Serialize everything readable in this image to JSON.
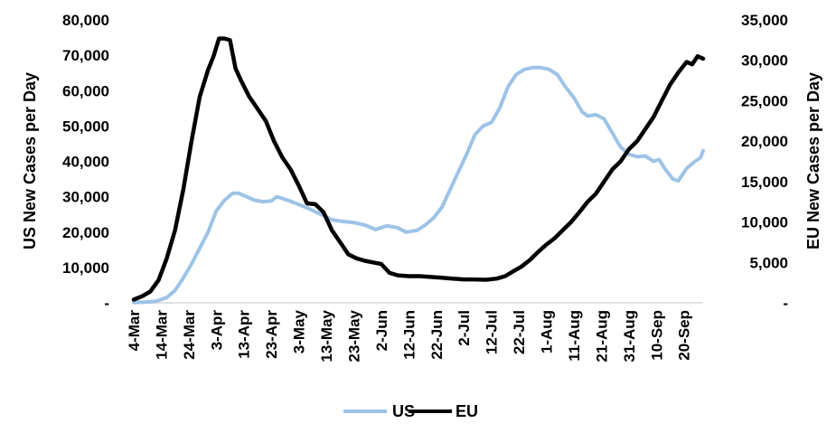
{
  "chart_data": {
    "type": "line",
    "title": "",
    "xlabel": "",
    "x_tick_labels": [
      "4-Mar",
      "14-Mar",
      "24-Mar",
      "3-Apr",
      "13-Apr",
      "23-Apr",
      "3-May",
      "13-May",
      "23-May",
      "2-Jun",
      "12-Jun",
      "22-Jun",
      "2-Jul",
      "12-Jul",
      "22-Jul",
      "1-Aug",
      "11-Aug",
      "21-Aug",
      "31-Aug",
      "10-Sep",
      "20-Sep"
    ],
    "x_day_span": [
      0,
      207
    ],
    "y_left": {
      "label": "US New Cases per Day",
      "lim": [
        0,
        80000
      ],
      "tick_labels": [
        "-",
        "10,000",
        "20,000",
        "30,000",
        "40,000",
        "50,000",
        "60,000",
        "70,000",
        "80,000"
      ]
    },
    "y_right": {
      "label": "EU New Cases per Day",
      "lim": [
        0,
        35000
      ],
      "tick_labels": [
        "-",
        "5,000",
        "10,000",
        "15,000",
        "20,000",
        "25,000",
        "30,000",
        "35,000"
      ]
    },
    "grid": false,
    "legend": "bottom-center",
    "series": [
      {
        "name": "US",
        "axis": "left",
        "color": "#9dc3e6",
        "x_labels_ref": "day index from 4-Mar",
        "points": [
          [
            0,
            100
          ],
          [
            4,
            200
          ],
          [
            8,
            400
          ],
          [
            12,
            1500
          ],
          [
            15,
            3500
          ],
          [
            18,
            7000
          ],
          [
            21,
            11000
          ],
          [
            24,
            15500
          ],
          [
            27,
            20000
          ],
          [
            30,
            26000
          ],
          [
            33,
            29000
          ],
          [
            36,
            31000
          ],
          [
            38,
            31000
          ],
          [
            41,
            30000
          ],
          [
            44,
            29000
          ],
          [
            47,
            28600
          ],
          [
            50,
            28800
          ],
          [
            52,
            30000
          ],
          [
            56,
            29000
          ],
          [
            60,
            27800
          ],
          [
            64,
            26500
          ],
          [
            68,
            25000
          ],
          [
            72,
            23500
          ],
          [
            76,
            23000
          ],
          [
            80,
            22700
          ],
          [
            84,
            22000
          ],
          [
            88,
            20700
          ],
          [
            92,
            21800
          ],
          [
            96,
            21200
          ],
          [
            99,
            20000
          ],
          [
            103,
            20500
          ],
          [
            106,
            22000
          ],
          [
            109,
            24000
          ],
          [
            112,
            27000
          ],
          [
            115,
            32000
          ],
          [
            118,
            37000
          ],
          [
            121,
            42000
          ],
          [
            124,
            47500
          ],
          [
            127,
            50000
          ],
          [
            130,
            51000
          ],
          [
            133,
            55000
          ],
          [
            136,
            61000
          ],
          [
            139,
            64500
          ],
          [
            142,
            66000
          ],
          [
            145,
            66500
          ],
          [
            148,
            66500
          ],
          [
            151,
            66000
          ],
          [
            154,
            64500
          ],
          [
            157,
            61000
          ],
          [
            160,
            58000
          ],
          [
            163,
            54000
          ],
          [
            165,
            52800
          ],
          [
            168,
            53200
          ],
          [
            171,
            52000
          ],
          [
            174,
            48000
          ],
          [
            177,
            44000
          ],
          [
            180,
            42000
          ],
          [
            183,
            41300
          ],
          [
            186,
            41500
          ],
          [
            189,
            40000
          ],
          [
            191,
            40500
          ],
          [
            193,
            38000
          ],
          [
            196,
            35000
          ],
          [
            198,
            34500
          ],
          [
            201,
            38000
          ],
          [
            204,
            40000
          ],
          [
            206,
            41000
          ],
          [
            207,
            43000
          ]
        ]
      },
      {
        "name": "EU",
        "axis": "right",
        "color": "#000000",
        "x_labels_ref": "day index from 4-Mar",
        "points": [
          [
            0,
            400
          ],
          [
            3,
            800
          ],
          [
            6,
            1400
          ],
          [
            9,
            2800
          ],
          [
            12,
            5500
          ],
          [
            15,
            9000
          ],
          [
            18,
            14000
          ],
          [
            21,
            20000
          ],
          [
            24,
            25500
          ],
          [
            27,
            28800
          ],
          [
            29,
            30500
          ],
          [
            31,
            32700
          ],
          [
            33,
            32700
          ],
          [
            35,
            32500
          ],
          [
            37,
            29000
          ],
          [
            39,
            27500
          ],
          [
            42,
            25500
          ],
          [
            45,
            24000
          ],
          [
            48,
            22500
          ],
          [
            51,
            20000
          ],
          [
            54,
            18000
          ],
          [
            57,
            16500
          ],
          [
            60,
            14500
          ],
          [
            63,
            12300
          ],
          [
            66,
            12200
          ],
          [
            69,
            11200
          ],
          [
            72,
            9000
          ],
          [
            75,
            7500
          ],
          [
            78,
            6000
          ],
          [
            81,
            5500
          ],
          [
            84,
            5200
          ],
          [
            87,
            5000
          ],
          [
            90,
            4800
          ],
          [
            93,
            3700
          ],
          [
            96,
            3400
          ],
          [
            100,
            3300
          ],
          [
            104,
            3300
          ],
          [
            108,
            3200
          ],
          [
            112,
            3100
          ],
          [
            116,
            3000
          ],
          [
            120,
            2900
          ],
          [
            124,
            2900
          ],
          [
            128,
            2850
          ],
          [
            132,
            3000
          ],
          [
            135,
            3300
          ],
          [
            138,
            3900
          ],
          [
            141,
            4500
          ],
          [
            144,
            5300
          ],
          [
            147,
            6300
          ],
          [
            150,
            7200
          ],
          [
            153,
            8000
          ],
          [
            156,
            9000
          ],
          [
            159,
            10000
          ],
          [
            162,
            11200
          ],
          [
            165,
            12500
          ],
          [
            168,
            13500
          ],
          [
            171,
            15000
          ],
          [
            174,
            16500
          ],
          [
            177,
            17500
          ],
          [
            180,
            19000
          ],
          [
            183,
            20000
          ],
          [
            186,
            21500
          ],
          [
            189,
            23000
          ],
          [
            192,
            25000
          ],
          [
            195,
            27000
          ],
          [
            198,
            28500
          ],
          [
            201,
            29800
          ],
          [
            203,
            29500
          ],
          [
            205,
            30500
          ],
          [
            207,
            30200
          ]
        ]
      }
    ]
  },
  "colors": {
    "us_line": "#9dc3e6",
    "eu_line": "#000000",
    "axis": "#d9d9d9",
    "text": "#000000"
  }
}
